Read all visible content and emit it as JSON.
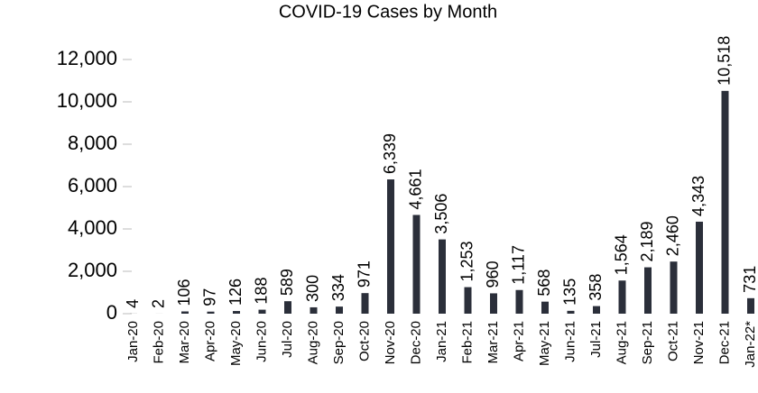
{
  "chart_data": {
    "type": "bar",
    "title": "COVID-19 Cases by Month",
    "categories": [
      "Jan-20",
      "Feb-20",
      "Mar-20",
      "Apr-20",
      "May-20",
      "Jun-20",
      "Jul-20",
      "Aug-20",
      "Sep-20",
      "Oct-20",
      "Nov-20",
      "Dec-20",
      "Jan-21",
      "Feb-21",
      "Mar-21",
      "Apr-21",
      "May-21",
      "Jun-21",
      "Jul-21",
      "Aug-21",
      "Sep-21",
      "Oct-21",
      "Nov-21",
      "Dec-21",
      "Jan-22*"
    ],
    "values": [
      4,
      2,
      106,
      97,
      126,
      188,
      589,
      300,
      334,
      971,
      6339,
      4661,
      3506,
      1253,
      960,
      1117,
      568,
      135,
      358,
      1564,
      2189,
      2460,
      4343,
      10518,
      731
    ],
    "value_labels": [
      "4",
      "2",
      "106",
      "97",
      "126",
      "188",
      "589",
      "300",
      "334",
      "971",
      "6,339",
      "4,661",
      "3,506",
      "1,253",
      "960",
      "1,117",
      "568",
      "135",
      "358",
      "1,564",
      "2,189",
      "2,460",
      "4,343",
      "10,518",
      "731"
    ],
    "color": "#2b2f3a",
    "ylim": [
      0,
      12000
    ],
    "yticks": [
      0,
      {
        "value": 2000,
        "label": "2,000"
      },
      {
        "value": 4000,
        "label": "4,000"
      },
      {
        "value": 6000,
        "label": "6,000"
      },
      {
        "value": 8000,
        "label": "8,000"
      },
      {
        "value": 10000,
        "label": "10,000"
      },
      {
        "value": 12000,
        "label": "12,000"
      }
    ],
    "grid": false
  }
}
